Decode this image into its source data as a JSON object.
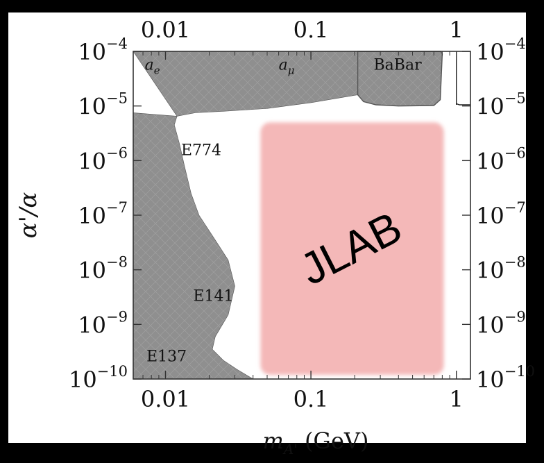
{
  "chart_data": {
    "type": "area",
    "xscale": "log",
    "yscale": "log",
    "xlim": [
      0.006,
      1.25
    ],
    "ylim": [
      1e-10,
      0.0001
    ],
    "x_ticks": [
      {
        "value": 0.01,
        "label": "0.01"
      },
      {
        "value": 0.1,
        "label": "0.1"
      },
      {
        "value": 1,
        "label": "1"
      }
    ],
    "y_ticks": [
      {
        "value": 0.0001,
        "base": "10",
        "exp": "−4"
      },
      {
        "value": 1e-05,
        "base": "10",
        "exp": "−5"
      },
      {
        "value": 1e-06,
        "base": "10",
        "exp": "−6"
      },
      {
        "value": 1e-07,
        "base": "10",
        "exp": "−7"
      },
      {
        "value": 1e-08,
        "base": "10",
        "exp": "−8"
      },
      {
        "value": 1e-09,
        "base": "10",
        "exp": "−9"
      },
      {
        "value": 1e-10,
        "base": "10",
        "exp": "−10"
      }
    ],
    "xlabel": {
      "main": "m",
      "sub": "A'",
      "unit": " (GeV)"
    },
    "ylabel": "α'/α",
    "colors": {
      "excluded": "#8f8f8f",
      "jlab": "#f4b8b8",
      "frame": "#333333",
      "background": "#000000"
    },
    "excluded_regions": [
      {
        "name": "anomalous magnetic moment",
        "points": [
          [
            0.006,
            0.0001
          ],
          [
            0.21,
            0.0001
          ],
          [
            0.21,
            1.6e-05
          ],
          [
            0.1,
            1.15e-05
          ],
          [
            0.05,
            9e-06
          ],
          [
            0.025,
            8e-06
          ],
          [
            0.016,
            7.5e-06
          ],
          [
            0.012,
            6.5e-06
          ]
        ]
      },
      {
        "name": "beam dump",
        "points": [
          [
            0.012,
            6.5e-06
          ],
          [
            0.0115,
            4.5e-06
          ],
          [
            0.0125,
            2e-06
          ],
          [
            0.0135,
            8e-07
          ],
          [
            0.015,
            2.5e-07
          ],
          [
            0.017,
            1e-07
          ],
          [
            0.022,
            3.5e-08
          ],
          [
            0.027,
            1.5e-08
          ],
          [
            0.03,
            5e-09
          ],
          [
            0.027,
            1.5e-09
          ],
          [
            0.022,
            6e-10
          ],
          [
            0.021,
            3.5e-10
          ],
          [
            0.025,
            2.2e-10
          ],
          [
            0.031,
            1.5e-10
          ],
          [
            0.04,
            1e-10
          ],
          [
            0.006,
            1e-10
          ],
          [
            0.006,
            7.5e-06
          ]
        ]
      },
      {
        "name": "BaBar",
        "points": [
          [
            0.21,
            0.0001
          ],
          [
            0.78,
            0.0001
          ],
          [
            0.8,
            9e-05
          ],
          [
            0.775,
            1.3e-05
          ],
          [
            0.7,
            1.02e-05
          ],
          [
            0.4,
            1e-05
          ],
          [
            0.28,
            1.05e-05
          ],
          [
            0.23,
            1.2e-05
          ],
          [
            0.21,
            1.6e-05
          ]
        ]
      }
    ],
    "extra_lines": [
      {
        "name": "upsilon line",
        "points": [
          [
            1.0,
            0.0001
          ],
          [
            1.0,
            1.05e-05
          ]
        ]
      },
      {
        "name": "babar tail",
        "points": [
          [
            1.0,
            1.1e-05
          ],
          [
            1.05,
            1.05e-05
          ],
          [
            1.25,
            1.05e-05
          ]
        ]
      }
    ],
    "proposed_region": {
      "label": "JLAB",
      "x": [
        0.045,
        0.82
      ],
      "y": [
        1e-10,
        5e-06
      ]
    },
    "annotations": [
      {
        "name": "a-e",
        "text": "a",
        "sub": "e",
        "x": 0.0072,
        "y": 5.5e-05,
        "italic": true
      },
      {
        "name": "a-mu",
        "text": "a",
        "sub": "μ",
        "x": 0.06,
        "y": 5.5e-05,
        "italic": true
      },
      {
        "name": "babar",
        "text": "BaBar",
        "x": 0.27,
        "y": 5.5e-05,
        "italic": false
      },
      {
        "name": "e774",
        "text": "E774",
        "x": 0.0128,
        "y": 1.5e-06,
        "italic": false
      },
      {
        "name": "e141",
        "text": "E141",
        "x": 0.0155,
        "y": 3.2e-09,
        "italic": false
      },
      {
        "name": "e137",
        "text": "E137",
        "x": 0.0074,
        "y": 2.5e-10,
        "italic": false
      }
    ]
  }
}
